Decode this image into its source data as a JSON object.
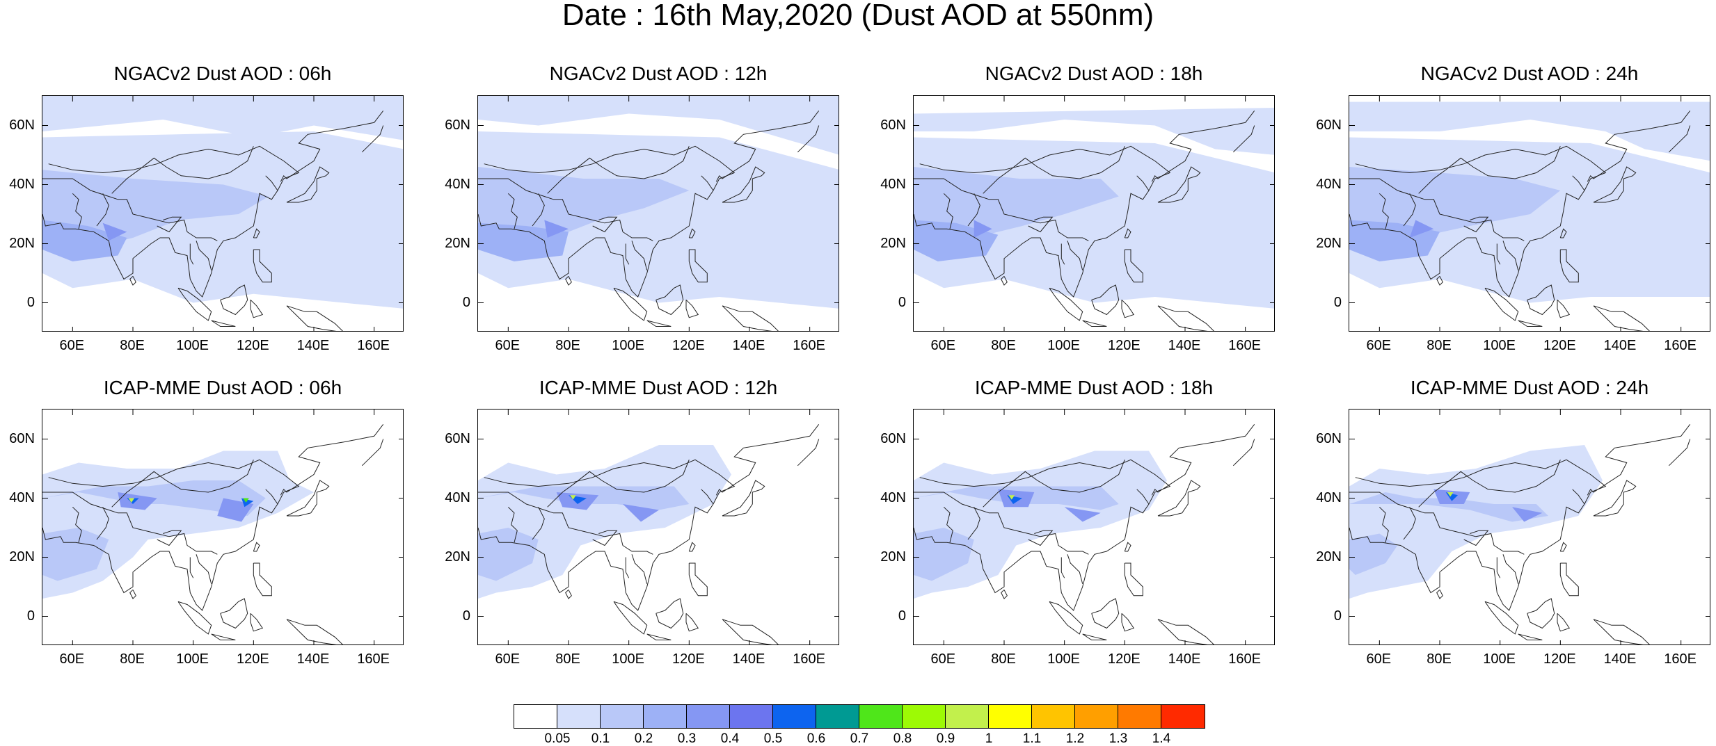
{
  "title": "Date : 16th May,2020 (Dust AOD at 550nm)",
  "panels": [
    {
      "title": "NGACv2 Dust AOD : 06h",
      "model": "NGACv2",
      "hour": "06h"
    },
    {
      "title": "NGACv2 Dust AOD : 12h",
      "model": "NGACv2",
      "hour": "12h"
    },
    {
      "title": "NGACv2 Dust AOD : 18h",
      "model": "NGACv2",
      "hour": "18h"
    },
    {
      "title": "NGACv2 Dust AOD : 24h",
      "model": "NGACv2",
      "hour": "24h"
    },
    {
      "title": "ICAP-MME Dust AOD : 06h",
      "model": "ICAP-MME",
      "hour": "06h"
    },
    {
      "title": "ICAP-MME Dust AOD : 12h",
      "model": "ICAP-MME",
      "hour": "12h"
    },
    {
      "title": "ICAP-MME Dust AOD : 18h",
      "model": "ICAP-MME",
      "hour": "18h"
    },
    {
      "title": "ICAP-MME Dust AOD : 24h",
      "model": "ICAP-MME",
      "hour": "24h"
    }
  ],
  "lat_ticks": [
    "60N",
    "40N",
    "20N",
    "0"
  ],
  "lon_ticks": [
    "60E",
    "80E",
    "100E",
    "120E",
    "140E",
    "160E"
  ],
  "colorbar": {
    "colors": [
      "#ffffff",
      "#d6e0fb",
      "#b9c8f8",
      "#9db1f6",
      "#8597f3",
      "#6c75ef",
      "#0d64ef",
      "#009a93",
      "#4fe61a",
      "#9dfa05",
      "#c2f04c",
      "#ffff00",
      "#ffc400",
      "#ff9f00",
      "#ff7a00",
      "#ff2a00"
    ],
    "tick_labels": [
      "0.05",
      "0.1",
      "0.2",
      "0.3",
      "0.4",
      "0.5",
      "0.6",
      "0.7",
      "0.8",
      "0.9",
      "1",
      "1.1",
      "1.2",
      "1.3",
      "1.4"
    ]
  }
}
